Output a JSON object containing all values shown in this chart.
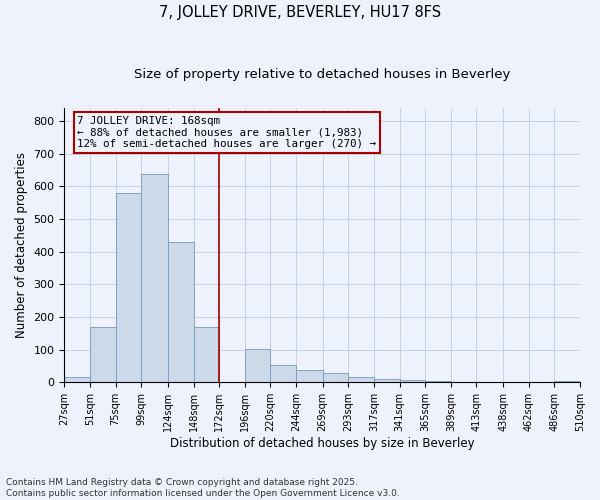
{
  "title": "7, JOLLEY DRIVE, BEVERLEY, HU17 8FS",
  "subtitle": "Size of property relative to detached houses in Beverley",
  "xlabel": "Distribution of detached houses by size in Beverley",
  "ylabel": "Number of detached properties",
  "bin_edges": [
    27,
    51,
    75,
    99,
    124,
    148,
    172,
    196,
    220,
    244,
    269,
    293,
    317,
    341,
    365,
    389,
    413,
    438,
    462,
    486,
    510
  ],
  "bar_heights": [
    15,
    168,
    580,
    638,
    430,
    170,
    0,
    103,
    52,
    38,
    28,
    15,
    10,
    6,
    3,
    2,
    1,
    1,
    0,
    5
  ],
  "bar_color": "#ccd9e8",
  "bar_edgecolor": "#7799bb",
  "vline_x": 172,
  "vline_color": "#aa0000",
  "annotation_text": "7 JOLLEY DRIVE: 168sqm\n← 88% of detached houses are smaller (1,983)\n12% of semi-detached houses are larger (270) →",
  "annotation_box_edgecolor": "#aa0000",
  "annotation_fontsize": 7.8,
  "ylim": [
    0,
    840
  ],
  "yticks": [
    0,
    100,
    200,
    300,
    400,
    500,
    600,
    700,
    800
  ],
  "bg_color": "#eef2fc",
  "grid_color": "#c0cce0",
  "footnote": "Contains HM Land Registry data © Crown copyright and database right 2025.\nContains public sector information licensed under the Open Government Licence v3.0.",
  "title_fontsize": 10.5,
  "subtitle_fontsize": 9.5,
  "footnote_fontsize": 6.5
}
